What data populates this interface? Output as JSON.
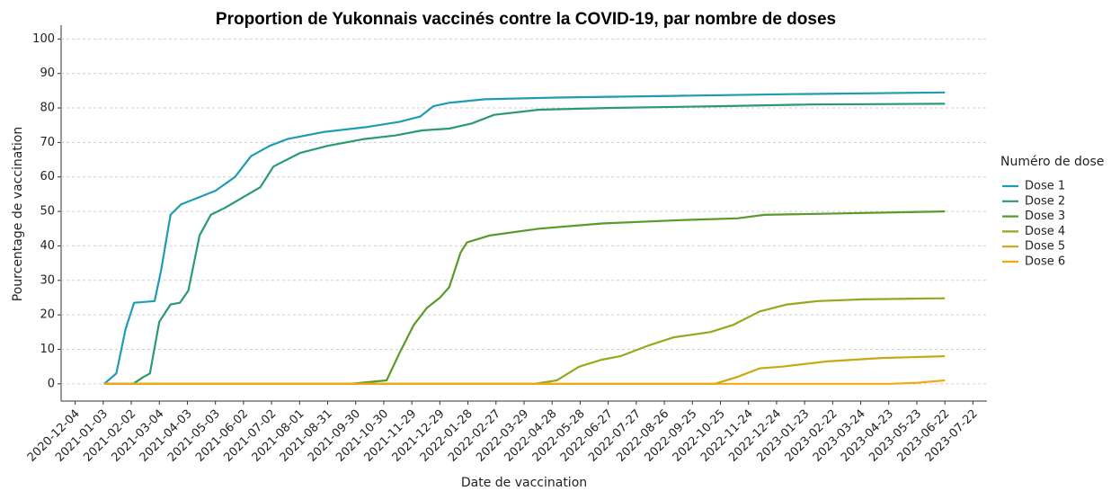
{
  "chart_data": {
    "type": "line",
    "title": "Proportion de Yukonnais vaccinés contre la COVID-19, par nombre de doses",
    "xlabel": "Date de vaccination",
    "ylabel": "Pourcentage de vaccination",
    "legend_title": "Numéro de dose",
    "legend": "right",
    "grid": true,
    "xlim": [
      "2020-11-19",
      "2023-08-06"
    ],
    "xticks": [
      "2020-12-04",
      "2021-01-03",
      "2021-02-02",
      "2021-03-04",
      "2021-04-03",
      "2021-05-03",
      "2021-06-02",
      "2021-07-02",
      "2021-08-01",
      "2021-08-31",
      "2021-09-30",
      "2021-10-30",
      "2021-11-29",
      "2021-12-29",
      "2022-01-28",
      "2022-02-27",
      "2022-03-29",
      "2022-04-28",
      "2022-05-28",
      "2022-06-27",
      "2022-07-27",
      "2022-08-26",
      "2022-09-25",
      "2022-10-25",
      "2022-11-24",
      "2022-12-24",
      "2023-01-23",
      "2023-02-22",
      "2023-03-24",
      "2023-04-23",
      "2023-05-23",
      "2023-06-22",
      "2023-07-22"
    ],
    "ylim": [
      -5,
      104
    ],
    "yticks": [
      0,
      10,
      20,
      30,
      40,
      50,
      60,
      70,
      80,
      90,
      100
    ],
    "series": [
      {
        "name": "Dose 1",
        "color": "#1f9bb3",
        "x": [
          "2021-01-04",
          "2021-01-17",
          "2021-01-27",
          "2021-02-05",
          "2021-02-27",
          "2021-03-06",
          "2021-03-16",
          "2021-03-27",
          "2021-05-03",
          "2021-05-24",
          "2021-06-10",
          "2021-06-30",
          "2021-07-19",
          "2021-08-26",
          "2021-10-13",
          "2021-11-16",
          "2021-12-08",
          "2021-12-22",
          "2022-01-08",
          "2022-02-15",
          "2022-05-03",
          "2022-09-05",
          "2023-01-08",
          "2023-06-22"
        ],
        "values": [
          0,
          3,
          16,
          23.5,
          24,
          33,
          49,
          52,
          56,
          60,
          66,
          69,
          71,
          73,
          74.5,
          76,
          77.5,
          80.5,
          81.5,
          82.5,
          83,
          83.5,
          84,
          84.5
        ]
      },
      {
        "name": "Dose 2",
        "color": "#2a9a70",
        "x": [
          "2021-01-04",
          "2021-02-04",
          "2021-02-15",
          "2021-02-22",
          "2021-03-04",
          "2021-03-16",
          "2021-03-26",
          "2021-04-04",
          "2021-04-16",
          "2021-04-28",
          "2021-05-13",
          "2021-06-01",
          "2021-06-20",
          "2021-07-04",
          "2021-08-02",
          "2021-08-31",
          "2021-10-09",
          "2021-11-11",
          "2021-12-10",
          "2022-01-08",
          "2022-02-01",
          "2022-02-25",
          "2022-04-14",
          "2022-06-30",
          "2022-10-23",
          "2023-01-28",
          "2023-06-22"
        ],
        "values": [
          0,
          0,
          2,
          3,
          18,
          23,
          23.5,
          27,
          43,
          49,
          51,
          54,
          57,
          63,
          67,
          69,
          71,
          72,
          73.5,
          74,
          75.5,
          78,
          79.5,
          80,
          80.5,
          81,
          81.2
        ]
      },
      {
        "name": "Dose 3",
        "color": "#5b9a2a",
        "x": [
          "2021-01-04",
          "2021-09-24",
          "2021-11-02",
          "2021-11-16",
          "2021-12-01",
          "2021-12-15",
          "2021-12-29",
          "2022-01-08",
          "2022-01-20",
          "2022-01-27",
          "2022-02-20",
          "2022-04-14",
          "2022-06-20",
          "2022-09-15",
          "2022-11-12",
          "2022-12-11",
          "2023-06-22"
        ],
        "values": [
          0,
          0,
          1,
          9,
          17,
          22,
          25,
          28,
          38,
          41,
          43,
          45,
          46.5,
          47.5,
          48,
          49,
          50
        ]
      },
      {
        "name": "Dose 4",
        "color": "#9aa61c",
        "x": [
          "2021-01-04",
          "2022-04-09",
          "2022-05-03",
          "2022-05-27",
          "2022-06-20",
          "2022-07-10",
          "2022-08-08",
          "2022-09-05",
          "2022-10-14",
          "2022-11-07",
          "2022-12-06",
          "2023-01-04",
          "2023-02-06",
          "2023-03-26",
          "2023-06-22"
        ],
        "values": [
          0,
          0,
          1,
          5,
          7,
          8,
          11,
          13.5,
          15,
          17,
          21,
          23,
          24,
          24.5,
          24.8
        ]
      },
      {
        "name": "Dose 5",
        "color": "#c9a812",
        "x": [
          "2021-01-04",
          "2022-10-19",
          "2022-11-12",
          "2022-12-06",
          "2022-12-30",
          "2023-02-16",
          "2023-04-15",
          "2023-06-22"
        ],
        "values": [
          0,
          0,
          2,
          4.5,
          5,
          6.5,
          7.5,
          8
        ]
      },
      {
        "name": "Dose 6",
        "color": "#f0a914",
        "x": [
          "2021-01-04",
          "2023-04-24",
          "2023-05-23",
          "2023-06-22"
        ],
        "values": [
          0,
          0,
          0.3,
          1
        ]
      }
    ]
  }
}
